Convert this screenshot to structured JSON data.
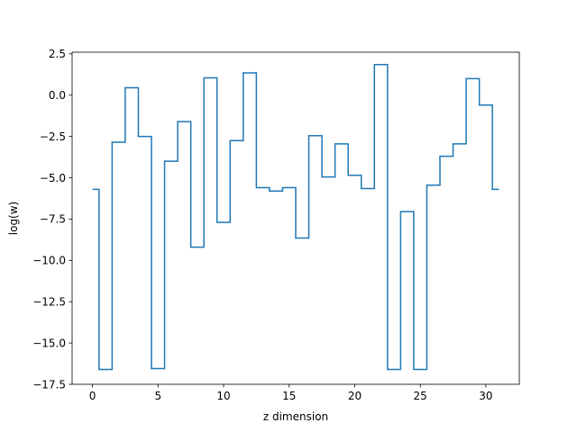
{
  "chart_data": {
    "type": "line",
    "drawstyle": "steps-mid",
    "xlabel": "z dimension",
    "ylabel": "log(w)",
    "xlim": [
      -1.55,
      32.55
    ],
    "ylim": [
      -17.5,
      2.6
    ],
    "xticks": [
      0,
      5,
      10,
      15,
      20,
      25,
      30
    ],
    "yticks": [
      2.5,
      0.0,
      -2.5,
      -5.0,
      -7.5,
      -10.0,
      -12.5,
      -15.0,
      -17.5
    ],
    "ytick_labels": [
      "2.5",
      "0.0",
      "−2.5",
      "−5.0",
      "−7.5",
      "−10.0",
      "−12.5",
      "−15.0",
      "−17.5"
    ],
    "grid": false,
    "color": "#1f77b4",
    "x": [
      0,
      1,
      2,
      3,
      4,
      5,
      6,
      7,
      8,
      9,
      10,
      11,
      12,
      13,
      14,
      15,
      16,
      17,
      18,
      19,
      20,
      21,
      22,
      23,
      24,
      25,
      26,
      27,
      28,
      29,
      30,
      31
    ],
    "y": [
      -5.7,
      -16.6,
      -2.85,
      0.45,
      -2.5,
      -16.55,
      -4.0,
      -1.6,
      -9.2,
      1.05,
      -7.7,
      -2.75,
      1.35,
      -5.6,
      -5.8,
      -5.6,
      -8.65,
      -2.45,
      -4.95,
      -2.95,
      -4.85,
      -5.65,
      1.85,
      -16.6,
      -7.05,
      -16.6,
      -5.45,
      -3.7,
      -2.95,
      1.0,
      -0.6,
      -5.7
    ]
  }
}
